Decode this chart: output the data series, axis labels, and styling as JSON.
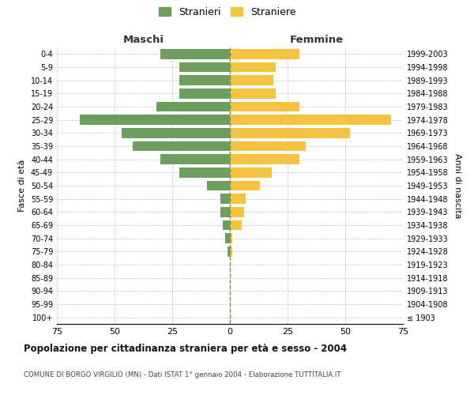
{
  "age_groups": [
    "100+",
    "95-99",
    "90-94",
    "85-89",
    "80-84",
    "75-79",
    "70-74",
    "65-69",
    "60-64",
    "55-59",
    "50-54",
    "45-49",
    "40-44",
    "35-39",
    "30-34",
    "25-29",
    "20-24",
    "15-19",
    "10-14",
    "5-9",
    "0-4"
  ],
  "birth_years": [
    "≤ 1903",
    "1904-1908",
    "1909-1913",
    "1914-1918",
    "1919-1923",
    "1924-1928",
    "1929-1933",
    "1934-1938",
    "1939-1943",
    "1944-1948",
    "1949-1953",
    "1954-1958",
    "1959-1963",
    "1964-1968",
    "1969-1973",
    "1974-1978",
    "1979-1983",
    "1984-1988",
    "1989-1993",
    "1994-1998",
    "1999-2003"
  ],
  "maschi": [
    0,
    0,
    0,
    0,
    0,
    1,
    2,
    3,
    4,
    4,
    10,
    22,
    30,
    42,
    47,
    65,
    32,
    22,
    22,
    22,
    30
  ],
  "femmine": [
    0,
    0,
    0,
    0,
    0,
    1,
    1,
    5,
    6,
    7,
    13,
    18,
    30,
    33,
    52,
    70,
    30,
    20,
    19,
    20,
    30
  ],
  "male_color": "#6d9e5e",
  "female_color": "#f5c242",
  "title": "Popolazione per cittadinanza straniera per età e sesso - 2004",
  "subtitle": "COMUNE DI BORGO VIRGILIO (MN) - Dati ISTAT 1° gennaio 2004 - Elaborazione TUTTITALIA.IT",
  "xlabel_left": "Maschi",
  "xlabel_right": "Femmine",
  "ylabel_left": "Fasce di età",
  "ylabel_right": "Anni di nascita",
  "legend_male": "Stranieri",
  "legend_female": "Straniere",
  "xlim": 75,
  "background_color": "#ffffff",
  "grid_color": "#cccccc",
  "centerline_color": "#888855"
}
